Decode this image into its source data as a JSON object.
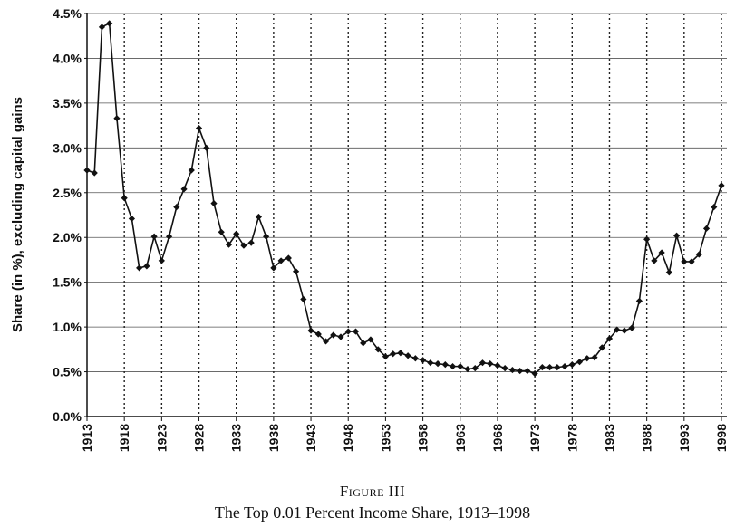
{
  "figure": {
    "label": "Figure III",
    "title": "The Top 0.01 Percent Income Share, 1913–1998"
  },
  "chart_data": {
    "type": "line",
    "title": "",
    "xlabel": "",
    "ylabel": "Share (in %), excluding capital gains",
    "xlim": [
      1913,
      1998
    ],
    "ylim": [
      0,
      4.5
    ],
    "y_ticks": [
      0,
      0.5,
      1.0,
      1.5,
      2.0,
      2.5,
      3.0,
      3.5,
      4.0,
      4.5
    ],
    "y_tick_labels": [
      "0.0%",
      "0.5%",
      "1.0%",
      "1.5%",
      "2.0%",
      "2.5%",
      "3.0%",
      "3.5%",
      "4.0%",
      "4.5%"
    ],
    "x_ticks": [
      1913,
      1918,
      1923,
      1928,
      1933,
      1938,
      1943,
      1948,
      1953,
      1958,
      1963,
      1968,
      1973,
      1978,
      1983,
      1988,
      1993,
      1998
    ],
    "x_tick_labels": [
      "1913",
      "1918",
      "1923",
      "1928",
      "1933",
      "1938",
      "1943",
      "1948",
      "1953",
      "1958",
      "1963",
      "1968",
      "1973",
      "1978",
      "1983",
      "1988",
      "1993",
      "1998"
    ],
    "grid": {
      "horizontal": true,
      "vertical": "dotted"
    },
    "legend": "none",
    "series": [
      {
        "color": "#111111",
        "marker": "diamond",
        "x": [
          1913,
          1914,
          1915,
          1916,
          1917,
          1918,
          1919,
          1920,
          1921,
          1922,
          1923,
          1924,
          1925,
          1926,
          1927,
          1928,
          1929,
          1930,
          1931,
          1932,
          1933,
          1934,
          1935,
          1936,
          1937,
          1938,
          1939,
          1940,
          1941,
          1942,
          1943,
          1944,
          1945,
          1946,
          1947,
          1948,
          1949,
          1950,
          1951,
          1952,
          1953,
          1954,
          1955,
          1956,
          1957,
          1958,
          1959,
          1960,
          1961,
          1962,
          1963,
          1964,
          1965,
          1966,
          1967,
          1968,
          1969,
          1970,
          1971,
          1972,
          1973,
          1974,
          1975,
          1976,
          1977,
          1978,
          1979,
          1980,
          1981,
          1982,
          1983,
          1984,
          1985,
          1986,
          1987,
          1988,
          1989,
          1990,
          1991,
          1992,
          1993,
          1994,
          1995,
          1996,
          1997,
          1998
        ],
        "values": [
          2.75,
          2.72,
          4.35,
          4.39,
          3.33,
          2.44,
          2.21,
          1.66,
          1.68,
          2.01,
          1.74,
          2.01,
          2.34,
          2.54,
          2.75,
          3.22,
          3.0,
          2.38,
          2.06,
          1.92,
          2.04,
          1.91,
          1.94,
          2.23,
          2.01,
          1.66,
          1.74,
          1.77,
          1.62,
          1.31,
          0.96,
          0.92,
          0.84,
          0.91,
          0.89,
          0.95,
          0.95,
          0.82,
          0.86,
          0.75,
          0.67,
          0.7,
          0.71,
          0.68,
          0.65,
          0.63,
          0.6,
          0.59,
          0.58,
          0.56,
          0.56,
          0.53,
          0.54,
          0.6,
          0.59,
          0.57,
          0.54,
          0.52,
          0.51,
          0.51,
          0.48,
          0.55,
          0.55,
          0.55,
          0.56,
          0.58,
          0.61,
          0.65,
          0.66,
          0.77,
          0.87,
          0.97,
          0.96,
          0.99,
          1.29,
          1.98,
          1.74,
          1.83,
          1.61,
          2.02,
          1.73,
          1.73,
          1.81,
          2.1,
          2.34,
          2.58
        ]
      }
    ]
  }
}
